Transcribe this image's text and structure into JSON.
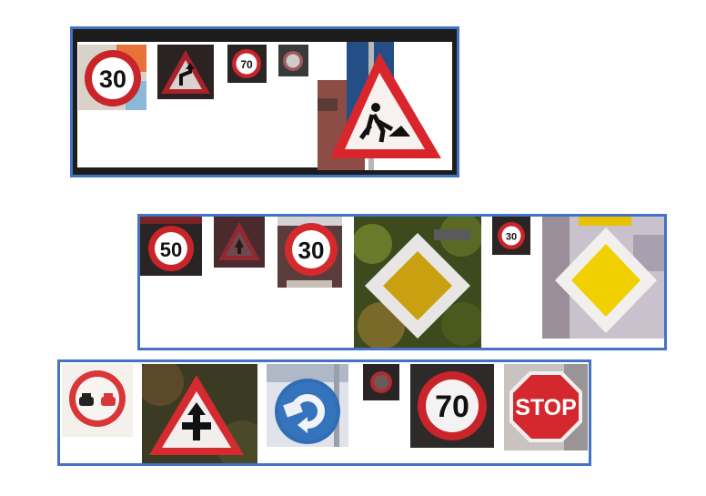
{
  "colors": {
    "group_border": "#4472c4",
    "sign_red": "#d9262c",
    "sign_yellow": "#f2c500",
    "sign_blue": "#2f6db5"
  },
  "rows": [
    {
      "signs": [
        {
          "type": "speed-limit",
          "text": "30"
        },
        {
          "type": "warning-curve-left",
          "text": ""
        },
        {
          "type": "speed-limit",
          "text": "70"
        },
        {
          "type": "speed-limit",
          "text": ""
        },
        {
          "type": "warning-roadworks",
          "text": ""
        }
      ]
    },
    {
      "signs": [
        {
          "type": "speed-limit",
          "text": "50"
        },
        {
          "type": "warning-triangle",
          "text": ""
        },
        {
          "type": "speed-limit",
          "text": "30"
        },
        {
          "type": "priority-road",
          "text": ""
        },
        {
          "type": "speed-limit",
          "text": "30"
        },
        {
          "type": "priority-road",
          "text": ""
        }
      ]
    },
    {
      "signs": [
        {
          "type": "no-overtaking",
          "text": ""
        },
        {
          "type": "warning-crossroads",
          "text": ""
        },
        {
          "type": "mandatory-roundabout",
          "text": ""
        },
        {
          "type": "speed-limit",
          "text": ""
        },
        {
          "type": "speed-limit",
          "text": "70"
        },
        {
          "type": "stop",
          "text": "STOP"
        }
      ]
    }
  ]
}
